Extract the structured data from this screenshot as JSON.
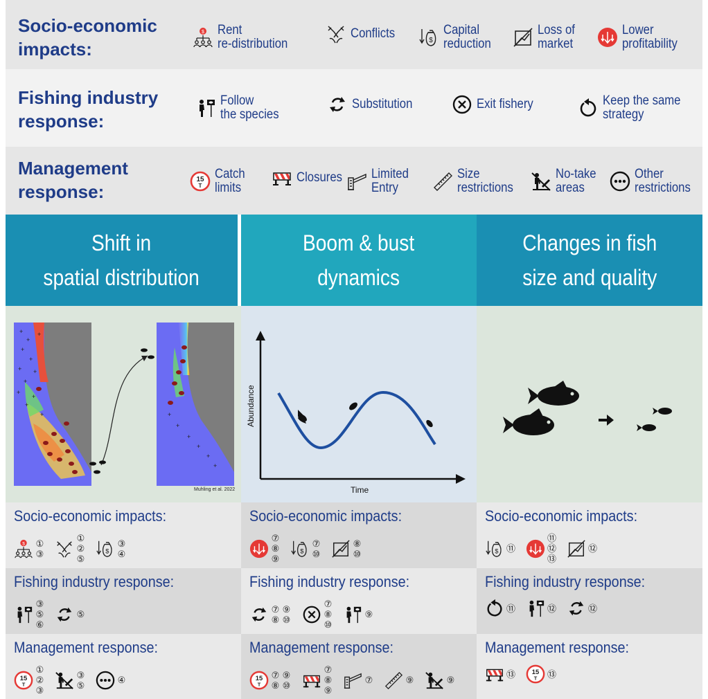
{
  "header": {
    "socio": {
      "title": "Socio-economic\nimpacts:",
      "items": [
        {
          "icon": "rent-redistribution-icon",
          "label": "Rent\nre-distribution"
        },
        {
          "icon": "conflicts-icon",
          "label": "Conflicts"
        },
        {
          "icon": "capital-reduction-icon",
          "label": "Capital\nreduction"
        },
        {
          "icon": "loss-of-market-icon",
          "label": "Loss of\nmarket"
        },
        {
          "icon": "lower-profitability-icon",
          "label": "Lower\nprofitability"
        }
      ]
    },
    "fishing": {
      "title": "Fishing industry\nresponse:",
      "items": [
        {
          "icon": "follow-species-icon",
          "label": "Follow\nthe species"
        },
        {
          "icon": "substitution-icon",
          "label": "Substitution"
        },
        {
          "icon": "exit-fishery-icon",
          "label": "Exit fishery"
        },
        {
          "icon": "keep-strategy-icon",
          "label": "Keep the same\nstrategy"
        }
      ]
    },
    "management": {
      "title": "Management\nresponse:",
      "items": [
        {
          "icon": "catch-limits-icon",
          "label": "Catch\nlimits"
        },
        {
          "icon": "closures-icon",
          "label": "Closures"
        },
        {
          "icon": "limited-entry-icon",
          "label": "Limited\nEntry"
        },
        {
          "icon": "size-restrictions-icon",
          "label": "Size\nrestrictions"
        },
        {
          "icon": "no-take-areas-icon",
          "label": "No-take\nareas"
        },
        {
          "icon": "other-restrictions-icon",
          "label": "Other\nrestrictions"
        }
      ]
    }
  },
  "columns": [
    {
      "title": "Shift in\nspatial distribution"
    },
    {
      "title": "Boom & bust\ndynamics"
    },
    {
      "title": "Changes in fish\nsize and quality"
    }
  ],
  "panels": {
    "map_credit": "Muhling et al. 2022",
    "chart_ylabel": "Abundance",
    "chart_xlabel": "Time"
  },
  "rows": {
    "socio_title": "Socio-economic impacts:",
    "fishing_title": "Fishing industry response:",
    "management_title": "Management response:"
  },
  "col1": {
    "socio": [
      {
        "icon": "rent-redistribution-icon",
        "nums": [
          "①",
          "③"
        ]
      },
      {
        "icon": "conflicts-icon",
        "nums": [
          "①",
          "②",
          "⑤"
        ]
      },
      {
        "icon": "capital-reduction-icon",
        "nums": [
          "③",
          "④"
        ]
      }
    ],
    "fishing": [
      {
        "icon": "follow-species-icon",
        "nums": [
          "③",
          "⑤",
          "⑥"
        ]
      },
      {
        "icon": "substitution-icon",
        "nums": [
          "⑤"
        ]
      }
    ],
    "management": [
      {
        "icon": "catch-limits-icon",
        "nums": [
          "①",
          "②",
          "③"
        ]
      },
      {
        "icon": "no-take-areas-icon",
        "nums": [
          "③",
          "⑤"
        ]
      },
      {
        "icon": "other-restrictions-icon",
        "nums": [
          "④"
        ]
      }
    ]
  },
  "col2": {
    "socio": [
      {
        "icon": "lower-profitability-icon",
        "nums": [
          "⑦",
          "⑧",
          "⑨"
        ]
      },
      {
        "icon": "capital-reduction-icon",
        "nums": [
          "⑦",
          "⑩"
        ]
      },
      {
        "icon": "loss-of-market-icon",
        "nums": [
          "⑧",
          "⑩"
        ]
      }
    ],
    "fishing": [
      {
        "icon": "substitution-icon",
        "nums": [
          "⑦",
          "⑨",
          "⑧",
          "⑩"
        ],
        "grid": true
      },
      {
        "icon": "exit-fishery-icon",
        "nums": [
          "⑦",
          "⑧",
          "⑩"
        ]
      },
      {
        "icon": "follow-species-icon",
        "nums": [
          "⑨"
        ]
      }
    ],
    "management": [
      {
        "icon": "catch-limits-icon",
        "nums": [
          "⑦",
          "⑨",
          "⑧",
          "⑩"
        ],
        "grid": true
      },
      {
        "icon": "closures-icon",
        "nums": [
          "⑦",
          "⑧",
          "⑨"
        ]
      },
      {
        "icon": "limited-entry-icon",
        "nums": [
          "⑦"
        ]
      },
      {
        "icon": "size-restrictions-icon",
        "nums": [
          "⑨"
        ]
      },
      {
        "icon": "no-take-areas-icon",
        "nums": [
          "⑨"
        ]
      }
    ]
  },
  "col3": {
    "socio": [
      {
        "icon": "capital-reduction-icon",
        "nums": [
          "⑪"
        ]
      },
      {
        "icon": "lower-profitability-icon",
        "nums": [
          "⑪",
          "⑫",
          "⑬"
        ]
      },
      {
        "icon": "loss-of-market-icon",
        "nums": [
          "⑫"
        ]
      }
    ],
    "fishing": [
      {
        "icon": "keep-strategy-icon",
        "nums": [
          "⑪"
        ]
      },
      {
        "icon": "follow-species-icon",
        "nums": [
          "⑫"
        ]
      },
      {
        "icon": "substitution-icon",
        "nums": [
          "⑫"
        ]
      }
    ],
    "management": [
      {
        "icon": "closures-icon",
        "nums": [
          "⑬"
        ]
      },
      {
        "icon": "catch-limits-icon",
        "nums": [
          "⑬"
        ]
      }
    ]
  },
  "colors": {
    "title_blue": "#1f3c88",
    "header_teal": "#1a8fb3",
    "header_teal_light": "#21a7bd",
    "alert_red": "#e53935"
  }
}
